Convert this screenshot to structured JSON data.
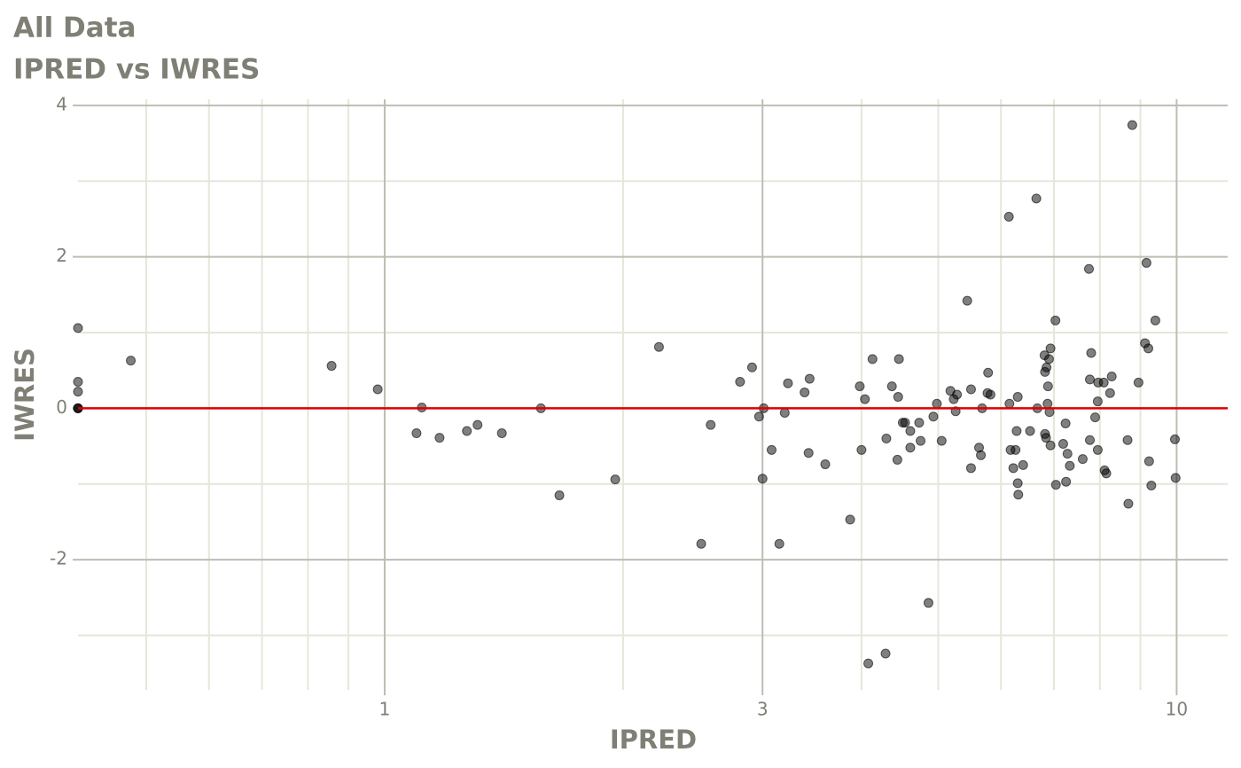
{
  "chart_data": {
    "type": "scatter",
    "title": "All Data",
    "subtitle": "IPRED vs IWRES",
    "x_label": "IPRED",
    "y_label": "IWRES",
    "log_x": true,
    "xlim": [
      0.41,
      11.6
    ],
    "ylim": [
      -3.72,
      4.08
    ],
    "xticks": [
      1,
      3,
      10
    ],
    "yticks": [
      -2,
      0,
      2,
      4
    ],
    "x_minor_grid": [
      0.5,
      0.6,
      0.7,
      0.8,
      0.9,
      2,
      4,
      5,
      6,
      7,
      8,
      9
    ],
    "y_minor_grid": [
      -3,
      -1,
      1,
      3
    ],
    "grid": true,
    "reference_line": {
      "value": 0,
      "color": "#e00000"
    },
    "color": "#000000",
    "x": [
      0.41,
      0.41,
      0.41,
      0.41,
      0.41,
      0.41,
      0.478,
      0.857,
      0.98,
      1.097,
      1.114,
      1.173,
      1.27,
      1.31,
      1.406,
      1.575,
      1.662,
      1.955,
      2.22,
      2.51,
      2.58,
      2.81,
      2.91,
      2.97,
      3.01,
      3.0,
      3.08,
      3.15,
      3.2,
      3.23,
      3.39,
      3.43,
      3.44,
      3.6,
      3.87,
      3.98,
      4.0,
      4.04,
      4.08,
      4.13,
      4.29,
      4.3,
      4.37,
      4.44,
      4.45,
      4.46,
      4.51,
      4.54,
      4.61,
      4.61,
      4.73,
      4.75,
      4.86,
      4.93,
      4.98,
      5.05,
      5.18,
      5.23,
      5.26,
      5.28,
      5.44,
      5.5,
      5.5,
      5.63,
      5.66,
      5.68,
      5.77,
      5.78,
      5.82,
      6.14,
      6.15,
      6.17,
      6.22,
      6.26,
      6.28,
      6.3,
      6.3,
      6.31,
      6.4,
      6.53,
      6.65,
      6.67,
      6.81,
      6.82,
      6.82,
      6.84,
      6.85,
      6.87,
      6.88,
      6.9,
      6.91,
      6.93,
      6.93,
      7.03,
      7.04,
      7.19,
      7.24,
      7.25,
      7.28,
      7.33,
      7.61,
      7.75,
      7.77,
      7.77,
      7.8,
      7.89,
      7.95,
      7.95,
      7.96,
      8.09,
      8.11,
      8.15,
      8.24,
      8.28,
      8.67,
      8.69,
      8.79,
      8.95,
      9.12,
      9.16,
      9.21,
      9.23,
      9.29,
      9.4,
      9.95,
      9.97
    ],
    "values": [
      1.06,
      0.35,
      0.22,
      0,
      0,
      0,
      0.63,
      0.56,
      0.25,
      -0.33,
      0.01,
      -0.39,
      -0.3,
      -0.22,
      -0.33,
      0,
      -1.15,
      -0.94,
      0.81,
      -1.79,
      -0.22,
      0.35,
      0.54,
      -0.11,
      0,
      -0.93,
      -0.55,
      -1.79,
      -0.06,
      0.33,
      0.21,
      -0.59,
      0.39,
      -0.74,
      -1.47,
      0.29,
      -0.55,
      0.12,
      -3.37,
      0.65,
      -3.24,
      -0.4,
      0.29,
      -0.68,
      0.15,
      0.65,
      -0.19,
      -0.19,
      -0.3,
      -0.52,
      -0.19,
      -0.43,
      -2.57,
      -0.11,
      0.06,
      -0.43,
      0.23,
      0.12,
      -0.04,
      0.18,
      1.42,
      0.25,
      -0.79,
      -0.52,
      -0.62,
      0,
      0.2,
      0.47,
      0.18,
      2.53,
      0.06,
      -0.55,
      -0.79,
      -0.55,
      -0.3,
      0.15,
      -0.99,
      -1.14,
      -0.75,
      -0.3,
      2.77,
      0,
      0.7,
      0.48,
      -0.34,
      -0.39,
      0.54,
      0.06,
      0.29,
      0.65,
      -0.05,
      0.79,
      -0.49,
      1.16,
      -1.01,
      -0.47,
      -0.2,
      -0.97,
      -0.6,
      -0.76,
      -0.67,
      1.84,
      -0.42,
      0.38,
      0.73,
      -0.12,
      0.09,
      -0.55,
      0.34,
      0.34,
      -0.82,
      -0.86,
      0.2,
      0.42,
      -0.42,
      -1.26,
      3.74,
      0.34,
      0.86,
      1.92,
      0.79,
      -0.7,
      -1.02,
      1.16,
      -0.41,
      -0.92
    ]
  }
}
